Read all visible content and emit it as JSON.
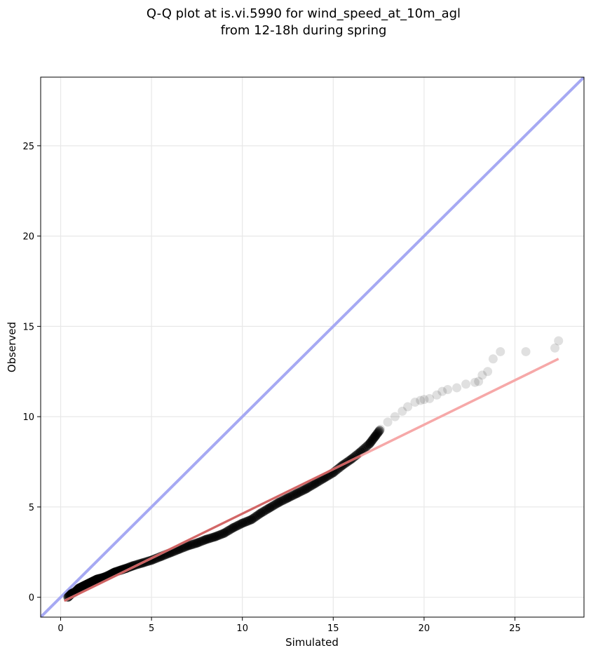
{
  "chart_data": {
    "type": "scatter",
    "title": [
      "Q-Q plot at is.vi.5990 for wind_speed_at_10m_agl",
      "from 12-18h during spring"
    ],
    "xlabel": "Simulated",
    "ylabel": "Observed",
    "xlim": [
      -1.1,
      28.8
    ],
    "ylim": [
      -1.1,
      28.8
    ],
    "xticks": [
      0,
      5,
      10,
      15,
      20,
      25
    ],
    "yticks": [
      0,
      5,
      10,
      15,
      20,
      25
    ],
    "grid": true,
    "colors": {
      "points": "#000000",
      "identity_line": "#a6a9f3",
      "fit_line": "#f5a3a3",
      "fit_line_overlap": "#b23030"
    },
    "identity_line": {
      "x": [
        -1.1,
        28.8
      ],
      "y": [
        -1.1,
        28.8
      ]
    },
    "fit_line": {
      "x": [
        0.2,
        27.4
      ],
      "y": [
        -0.2,
        13.2
      ]
    },
    "quantiles": {
      "x": [
        0.4,
        0.6,
        0.8,
        1.0,
        1.2,
        1.4,
        1.6,
        1.8,
        2.0,
        2.2,
        2.5,
        2.8,
        3.0,
        3.3,
        3.6,
        4.0,
        4.5,
        5.0,
        5.5,
        6.0,
        6.5,
        7.0,
        7.5,
        8.0,
        8.5,
        9.0,
        9.5,
        10.0,
        10.5,
        11.0,
        11.5,
        12.0,
        12.5,
        13.0,
        13.5,
        14.0,
        14.5,
        15.0,
        15.5,
        16.0,
        16.5,
        17.0,
        17.3,
        17.6,
        18.0,
        18.4,
        18.8,
        19.1,
        19.5,
        19.8,
        20.0,
        20.3,
        20.7,
        21.0,
        21.3,
        21.8,
        22.3,
        22.8,
        23.0,
        23.2,
        23.5,
        23.8,
        24.2,
        25.6,
        27.2,
        27.4
      ],
      "y": [
        0.0,
        0.2,
        0.3,
        0.5,
        0.6,
        0.7,
        0.8,
        0.9,
        1.0,
        1.05,
        1.15,
        1.3,
        1.4,
        1.5,
        1.6,
        1.75,
        1.9,
        2.05,
        2.25,
        2.45,
        2.65,
        2.85,
        3.0,
        3.2,
        3.35,
        3.55,
        3.85,
        4.1,
        4.3,
        4.65,
        4.95,
        5.25,
        5.5,
        5.75,
        6.0,
        6.3,
        6.6,
        6.9,
        7.3,
        7.65,
        8.05,
        8.5,
        8.9,
        9.3,
        9.7,
        10.0,
        10.3,
        10.55,
        10.8,
        10.9,
        10.95,
        11.0,
        11.2,
        11.4,
        11.5,
        11.6,
        11.8,
        11.9,
        11.95,
        12.3,
        12.5,
        13.2,
        13.6,
        13.6,
        13.8,
        14.2
      ]
    }
  }
}
